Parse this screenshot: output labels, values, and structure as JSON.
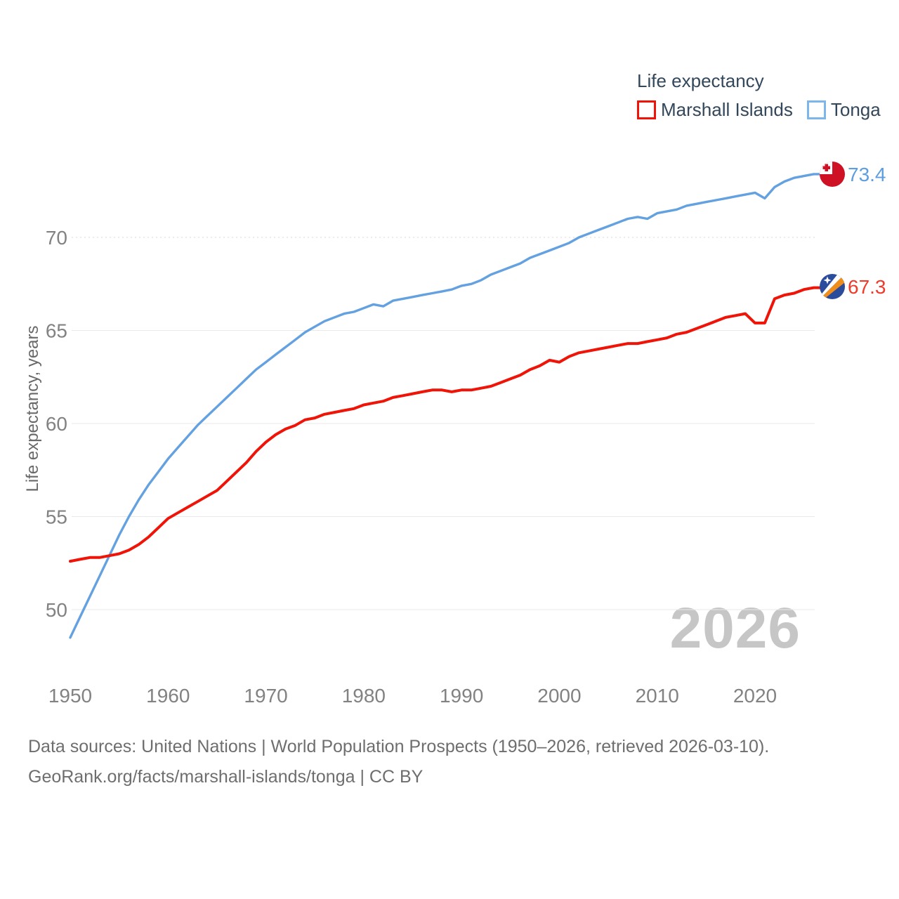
{
  "legend": {
    "title": "Life expectancy",
    "items": [
      {
        "label": "Marshall Islands",
        "color": "#ef1407"
      },
      {
        "label": "Tonga",
        "color": "#64a1e0"
      }
    ]
  },
  "watermark": "2026",
  "footer": {
    "line1": "Data sources: United Nations | World Population Prospects (1950–2026, retrieved 2026-03-10).",
    "line2": "GeoRank.org/facts/marshall-islands/tonga | CC BY"
  },
  "end_labels": [
    {
      "series": "Tonga",
      "text": "73.4",
      "color": "#5c9ee0",
      "flag": "tonga-flag"
    },
    {
      "series": "Marshall Islands",
      "text": "67.3",
      "color": "#f03b2b",
      "flag": "marshall-islands-flag"
    }
  ],
  "chart_data": {
    "type": "line",
    "title": "Life expectancy",
    "xlabel": "",
    "ylabel": "Life expectancy, years",
    "xlim": [
      1950,
      2026
    ],
    "ylim": [
      47.5,
      74.5
    ],
    "xticks": [
      1950,
      1960,
      1970,
      1980,
      1990,
      2000,
      2010,
      2020
    ],
    "yticks": [
      50,
      55,
      60,
      65,
      70
    ],
    "grid": "horizontal only",
    "legend_position": "top-right",
    "x": [
      1950,
      1951,
      1952,
      1953,
      1954,
      1955,
      1956,
      1957,
      1958,
      1959,
      1960,
      1961,
      1962,
      1963,
      1964,
      1965,
      1966,
      1967,
      1968,
      1969,
      1970,
      1971,
      1972,
      1973,
      1974,
      1975,
      1976,
      1977,
      1978,
      1979,
      1980,
      1981,
      1982,
      1983,
      1984,
      1985,
      1986,
      1987,
      1988,
      1989,
      1990,
      1991,
      1992,
      1993,
      1994,
      1995,
      1996,
      1997,
      1998,
      1999,
      2000,
      2001,
      2002,
      2003,
      2004,
      2005,
      2006,
      2007,
      2008,
      2009,
      2010,
      2011,
      2012,
      2013,
      2014,
      2015,
      2016,
      2017,
      2018,
      2019,
      2020,
      2021,
      2022,
      2023,
      2024,
      2025,
      2026
    ],
    "series": [
      {
        "name": "Marshall Islands",
        "color": "#ef1407",
        "end_value": 67.3,
        "values": [
          52.6,
          52.7,
          52.8,
          52.8,
          52.9,
          53.0,
          53.2,
          53.5,
          53.9,
          54.4,
          54.9,
          55.2,
          55.5,
          55.8,
          56.1,
          56.4,
          56.9,
          57.4,
          57.9,
          58.5,
          59.0,
          59.4,
          59.7,
          59.9,
          60.2,
          60.3,
          60.5,
          60.6,
          60.7,
          60.8,
          61.0,
          61.1,
          61.2,
          61.4,
          61.5,
          61.6,
          61.7,
          61.8,
          61.8,
          61.7,
          61.8,
          61.8,
          61.9,
          62.0,
          62.2,
          62.4,
          62.6,
          62.9,
          63.1,
          63.4,
          63.3,
          63.6,
          63.8,
          63.9,
          64.0,
          64.1,
          64.2,
          64.3,
          64.3,
          64.4,
          64.5,
          64.6,
          64.8,
          64.9,
          65.1,
          65.3,
          65.5,
          65.7,
          65.8,
          65.9,
          65.4,
          65.4,
          66.7,
          66.9,
          67.0,
          67.2,
          67.3
        ]
      },
      {
        "name": "Tonga",
        "color": "#64a1e0",
        "end_value": 73.4,
        "values": [
          48.5,
          49.6,
          50.7,
          51.8,
          52.9,
          54.0,
          55.0,
          55.9,
          56.7,
          57.4,
          58.1,
          58.7,
          59.3,
          59.9,
          60.4,
          60.9,
          61.4,
          61.9,
          62.4,
          62.9,
          63.3,
          63.7,
          64.1,
          64.5,
          64.9,
          65.2,
          65.5,
          65.7,
          65.9,
          66.0,
          66.2,
          66.4,
          66.3,
          66.6,
          66.7,
          66.8,
          66.9,
          67.0,
          67.1,
          67.2,
          67.4,
          67.5,
          67.7,
          68.0,
          68.2,
          68.4,
          68.6,
          68.9,
          69.1,
          69.3,
          69.5,
          69.7,
          70.0,
          70.2,
          70.4,
          70.6,
          70.8,
          71.0,
          71.1,
          71.0,
          71.3,
          71.4,
          71.5,
          71.7,
          71.8,
          71.9,
          72.0,
          72.1,
          72.2,
          72.3,
          72.4,
          72.1,
          72.7,
          73.0,
          73.2,
          73.3,
          73.4
        ]
      }
    ]
  }
}
